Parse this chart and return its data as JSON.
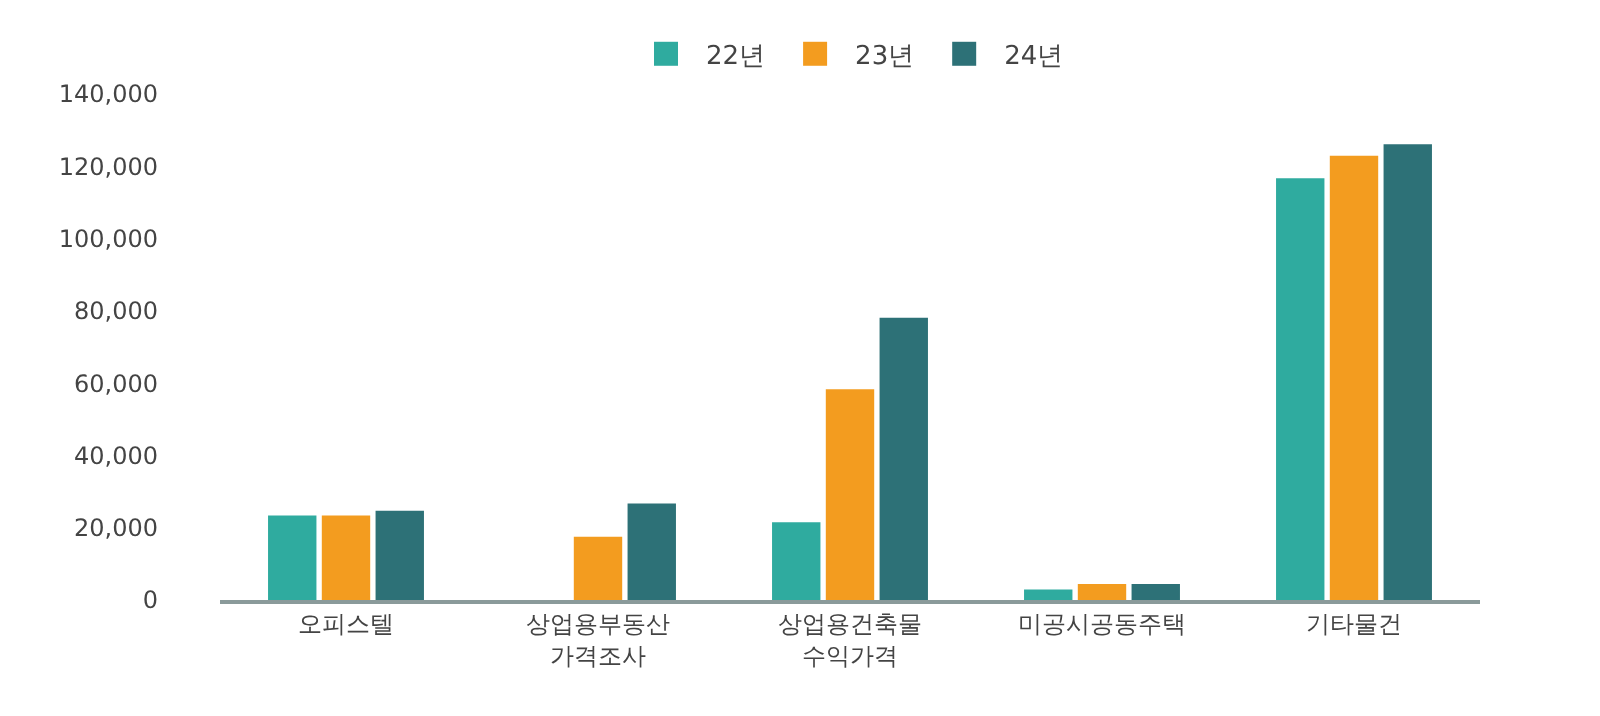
{
  "chart_data": {
    "type": "bar",
    "categories": [
      "오피스텔",
      "상업용부동산 가격조사",
      "상업용건축물 수익가격",
      "미공시공동주택",
      "기타물건"
    ],
    "series": [
      {
        "name": "22년",
        "color": "#2fab9f",
        "values": [
          23400,
          null,
          21500,
          2900,
          116700
        ]
      },
      {
        "name": "23년",
        "color": "#f39c1f",
        "values": [
          23400,
          17500,
          58300,
          4400,
          122900
        ]
      },
      {
        "name": "24년",
        "color": "#2d7177",
        "values": [
          24700,
          26700,
          78100,
          4400,
          126100
        ]
      }
    ],
    "ylim": [
      0,
      140000
    ],
    "yticks": [
      {
        "value": 0,
        "label": "0"
      },
      {
        "value": 20000,
        "label": "20,000"
      },
      {
        "value": 40000,
        "label": "40,000"
      },
      {
        "value": 60000,
        "label": "60,000"
      },
      {
        "value": 80000,
        "label": "80,000"
      },
      {
        "value": 100000,
        "label": "100,000"
      },
      {
        "value": 120000,
        "label": "120,000"
      },
      {
        "value": 140000,
        "label": "140,000"
      }
    ],
    "grid": false,
    "legend": "top"
  }
}
